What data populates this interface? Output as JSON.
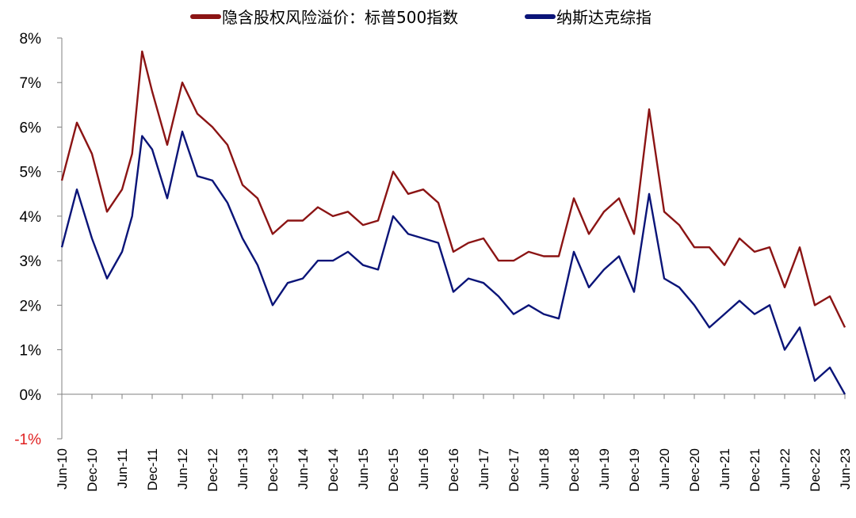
{
  "chart_data": {
    "type": "line",
    "title": "",
    "xlabel": "",
    "ylabel": "",
    "ylim": [
      -1,
      8
    ],
    "y_ticks": [
      -1,
      0,
      1,
      2,
      3,
      4,
      5,
      6,
      7,
      8
    ],
    "y_tick_labels": [
      "-1%",
      "0%",
      "1%",
      "2%",
      "3%",
      "4%",
      "5%",
      "6%",
      "7%",
      "8%"
    ],
    "negative_tick_color": "#E02020",
    "grid": false,
    "legend_position": "top",
    "x_tick_labels": [
      "Jun-10",
      "Dec-10",
      "Jun-11",
      "Dec-11",
      "Jun-12",
      "Dec-12",
      "Jun-13",
      "Dec-13",
      "Jun-14",
      "Dec-14",
      "Jun-15",
      "Dec-15",
      "Jun-16",
      "Dec-16",
      "Jun-17",
      "Dec-17",
      "Jun-18",
      "Dec-18",
      "Jun-19",
      "Dec-19",
      "Jun-20",
      "Dec-20",
      "Jun-21",
      "Dec-21",
      "Jun-22",
      "Dec-22",
      "Jun-23"
    ],
    "x": [
      "2010-06",
      "2010-09",
      "2010-12",
      "2011-03",
      "2011-06",
      "2011-08",
      "2011-10",
      "2011-12",
      "2012-03",
      "2012-06",
      "2012-09",
      "2012-12",
      "2013-03",
      "2013-06",
      "2013-09",
      "2013-12",
      "2014-03",
      "2014-06",
      "2014-09",
      "2014-12",
      "2015-03",
      "2015-06",
      "2015-09",
      "2015-12",
      "2016-03",
      "2016-06",
      "2016-09",
      "2016-12",
      "2017-03",
      "2017-06",
      "2017-09",
      "2017-12",
      "2018-03",
      "2018-06",
      "2018-09",
      "2018-12",
      "2019-03",
      "2019-06",
      "2019-09",
      "2019-12",
      "2020-03",
      "2020-06",
      "2020-09",
      "2020-12",
      "2021-03",
      "2021-06",
      "2021-09",
      "2021-12",
      "2022-03",
      "2022-06",
      "2022-09",
      "2022-12",
      "2023-03",
      "2023-06"
    ],
    "series": [
      {
        "name": "隐含股权风险溢价：标普500指数",
        "color": "#8B1414",
        "values": [
          4.8,
          6.1,
          5.4,
          4.1,
          4.6,
          5.4,
          7.7,
          6.8,
          5.6,
          7.0,
          6.3,
          6.0,
          5.6,
          4.7,
          4.4,
          3.6,
          3.9,
          3.9,
          4.2,
          4.0,
          4.1,
          3.8,
          3.9,
          5.0,
          4.5,
          4.6,
          4.3,
          3.2,
          3.4,
          3.5,
          3.0,
          3.0,
          3.2,
          3.1,
          3.1,
          4.4,
          3.6,
          4.1,
          4.4,
          3.6,
          6.4,
          4.1,
          3.8,
          3.3,
          3.3,
          2.9,
          3.5,
          3.2,
          3.3,
          2.4,
          3.3,
          2.0,
          2.2,
          1.5
        ]
      },
      {
        "name": "纳斯达克综指",
        "color": "#0A1478",
        "values": [
          3.3,
          4.6,
          3.5,
          2.6,
          3.2,
          4.0,
          5.8,
          5.5,
          4.4,
          5.9,
          4.9,
          4.8,
          4.3,
          3.5,
          2.9,
          2.0,
          2.5,
          2.6,
          3.0,
          3.0,
          3.2,
          2.9,
          2.8,
          4.0,
          3.6,
          3.5,
          3.4,
          2.3,
          2.6,
          2.5,
          2.2,
          1.8,
          2.0,
          1.8,
          1.7,
          3.2,
          2.4,
          2.8,
          3.1,
          2.3,
          4.5,
          2.6,
          2.4,
          2.0,
          1.5,
          1.8,
          2.1,
          1.8,
          2.0,
          1.0,
          1.5,
          0.3,
          0.6,
          0.0
        ]
      }
    ]
  }
}
